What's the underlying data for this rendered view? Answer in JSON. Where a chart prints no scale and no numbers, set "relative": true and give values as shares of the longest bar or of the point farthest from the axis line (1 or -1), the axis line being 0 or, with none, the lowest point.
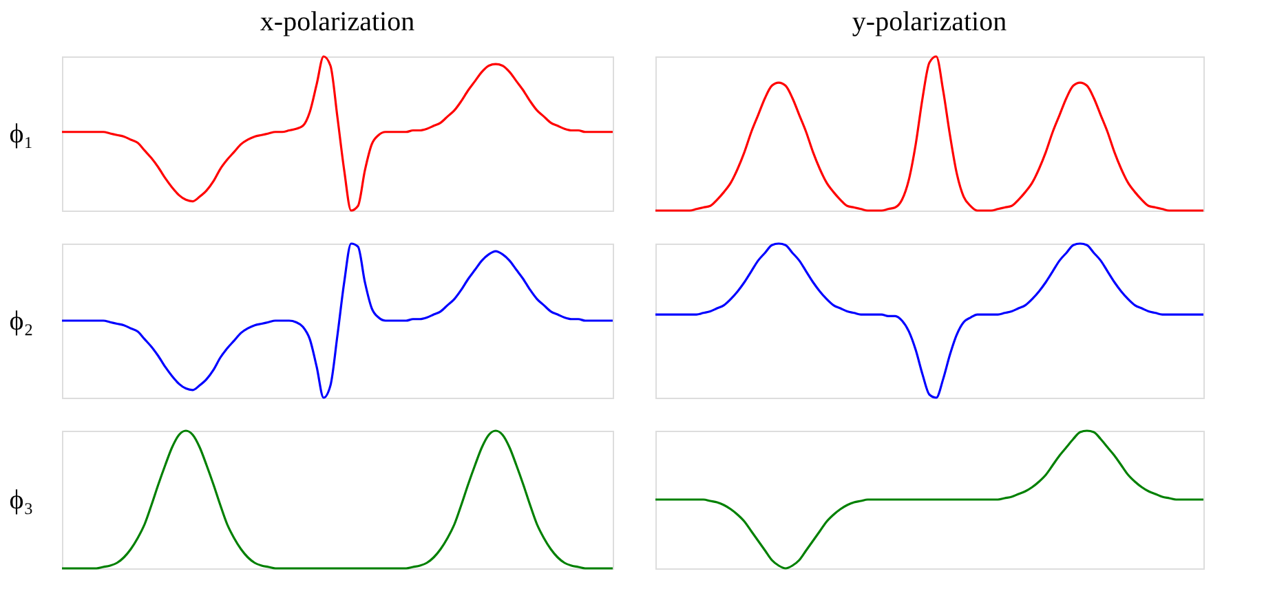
{
  "chart_data": [
    {
      "type": "line",
      "relative": true,
      "tick_labels": false,
      "title": "x-polarization",
      "ylabel": "ϕ₁",
      "categories": [
        null,
        null,
        null,
        null,
        null,
        null,
        null,
        null,
        null,
        null,
        null,
        null,
        null,
        null,
        null,
        null,
        null,
        null,
        null,
        null,
        null,
        null,
        null,
        null,
        null,
        null,
        null,
        null,
        null,
        null,
        null,
        null,
        null,
        null,
        null,
        null,
        null,
        null,
        null,
        null,
        null,
        null,
        null,
        null,
        null,
        null,
        null,
        null,
        null,
        null,
        null,
        null,
        null,
        null,
        null,
        null,
        null,
        null,
        null,
        null,
        null,
        null,
        null,
        null,
        null,
        null,
        null,
        null,
        null,
        null,
        null,
        null,
        null,
        null,
        null,
        null,
        null,
        null,
        null,
        null,
        null
      ],
      "series": [
        {
          "color": "#ff0000",
          "values": [
            0.51,
            0.51,
            0.51,
            0.51,
            0.51,
            0.51,
            0.51,
            0.5,
            0.49,
            0.48,
            0.46,
            0.44,
            0.39,
            0.34,
            0.28,
            0.21,
            0.15,
            0.1,
            0.07,
            0.06,
            0.09,
            0.13,
            0.19,
            0.27,
            0.33,
            0.38,
            0.43,
            0.46,
            0.48,
            0.49,
            0.5,
            0.51,
            0.51,
            0.52,
            0.53,
            0.55,
            0.64,
            0.82,
            1.0,
            0.94,
            0.61,
            0.26,
            0,
            0.03,
            0.26,
            0.43,
            0.49,
            0.51,
            0.51,
            0.51,
            0.51,
            0.52,
            0.52,
            0.53,
            0.55,
            0.57,
            0.61,
            0.65,
            0.71,
            0.78,
            0.84,
            0.9,
            0.94,
            0.95,
            0.94,
            0.9,
            0.84,
            0.78,
            0.71,
            0.65,
            0.61,
            0.57,
            0.55,
            0.53,
            0.52,
            0.52,
            0.51,
            0.51,
            0.51,
            0.51,
            0.51
          ]
        }
      ]
    },
    {
      "type": "line",
      "relative": true,
      "tick_labels": false,
      "title": "y-polarization",
      "categories": [
        null,
        null,
        null,
        null,
        null,
        null,
        null,
        null,
        null,
        null,
        null,
        null,
        null,
        null,
        null,
        null,
        null,
        null,
        null,
        null,
        null,
        null,
        null,
        null,
        null,
        null,
        null,
        null,
        null,
        null,
        null,
        null,
        null,
        null,
        null,
        null,
        null,
        null,
        null,
        null,
        null,
        null,
        null,
        null,
        null,
        null,
        null,
        null,
        null,
        null,
        null,
        null,
        null,
        null,
        null,
        null,
        null,
        null,
        null,
        null,
        null,
        null,
        null,
        null,
        null,
        null,
        null,
        null,
        null,
        null,
        null,
        null,
        null,
        null,
        null,
        null,
        null,
        null,
        null,
        null,
        null
      ],
      "series": [
        {
          "color": "#ff0000",
          "values": [
            0,
            0,
            0,
            0,
            0,
            0,
            0.01,
            0.02,
            0.03,
            0.07,
            0.12,
            0.18,
            0.27,
            0.38,
            0.51,
            0.62,
            0.73,
            0.81,
            0.83,
            0.81,
            0.73,
            0.62,
            0.51,
            0.38,
            0.27,
            0.18,
            0.12,
            0.07,
            0.03,
            0.02,
            0.01,
            0,
            0,
            0,
            0.01,
            0.02,
            0.07,
            0.2,
            0.43,
            0.73,
            0.96,
            1.0,
            0.78,
            0.49,
            0.24,
            0.09,
            0.03,
            0,
            0,
            0,
            0.01,
            0.02,
            0.03,
            0.07,
            0.12,
            0.18,
            0.27,
            0.38,
            0.51,
            0.62,
            0.73,
            0.81,
            0.83,
            0.81,
            0.73,
            0.62,
            0.51,
            0.38,
            0.27,
            0.18,
            0.12,
            0.07,
            0.03,
            0.02,
            0.01,
            0,
            0,
            0,
            0,
            0,
            0
          ]
        }
      ]
    },
    {
      "type": "line",
      "relative": true,
      "tick_labels": false,
      "ylabel": "ϕ₂",
      "categories": [
        null,
        null,
        null,
        null,
        null,
        null,
        null,
        null,
        null,
        null,
        null,
        null,
        null,
        null,
        null,
        null,
        null,
        null,
        null,
        null,
        null,
        null,
        null,
        null,
        null,
        null,
        null,
        null,
        null,
        null,
        null,
        null,
        null,
        null,
        null,
        null,
        null,
        null,
        null,
        null,
        null,
        null,
        null,
        null,
        null,
        null,
        null,
        null,
        null,
        null,
        null,
        null,
        null,
        null,
        null,
        null,
        null,
        null,
        null,
        null,
        null,
        null,
        null,
        null,
        null,
        null,
        null,
        null,
        null,
        null,
        null,
        null,
        null,
        null,
        null,
        null,
        null,
        null,
        null,
        null,
        null
      ],
      "series": [
        {
          "color": "#0000ff",
          "values": [
            0.5,
            0.5,
            0.5,
            0.5,
            0.5,
            0.5,
            0.5,
            0.49,
            0.48,
            0.47,
            0.45,
            0.43,
            0.38,
            0.33,
            0.27,
            0.2,
            0.14,
            0.09,
            0.06,
            0.05,
            0.08,
            0.12,
            0.18,
            0.26,
            0.32,
            0.37,
            0.42,
            0.45,
            0.47,
            0.48,
            0.49,
            0.5,
            0.5,
            0.5,
            0.49,
            0.46,
            0.38,
            0.2,
            0,
            0.08,
            0.4,
            0.75,
            1.0,
            0.98,
            0.75,
            0.58,
            0.52,
            0.5,
            0.5,
            0.5,
            0.5,
            0.51,
            0.51,
            0.52,
            0.54,
            0.56,
            0.6,
            0.64,
            0.7,
            0.77,
            0.83,
            0.89,
            0.93,
            0.95,
            0.93,
            0.89,
            0.83,
            0.77,
            0.7,
            0.64,
            0.6,
            0.56,
            0.54,
            0.52,
            0.51,
            0.51,
            0.5,
            0.5,
            0.5,
            0.5,
            0.5
          ]
        }
      ]
    },
    {
      "type": "line",
      "relative": true,
      "tick_labels": false,
      "categories": [
        null,
        null,
        null,
        null,
        null,
        null,
        null,
        null,
        null,
        null,
        null,
        null,
        null,
        null,
        null,
        null,
        null,
        null,
        null,
        null,
        null,
        null,
        null,
        null,
        null,
        null,
        null,
        null,
        null,
        null,
        null,
        null,
        null,
        null,
        null,
        null,
        null,
        null,
        null,
        null,
        null,
        null,
        null,
        null,
        null,
        null,
        null,
        null,
        null,
        null,
        null,
        null,
        null,
        null,
        null,
        null,
        null,
        null,
        null,
        null,
        null,
        null,
        null,
        null,
        null,
        null,
        null,
        null,
        null,
        null,
        null,
        null,
        null,
        null,
        null,
        null,
        null,
        null,
        null,
        null,
        null
      ],
      "series": [
        {
          "color": "#0000ff",
          "values": [
            0.54,
            0.54,
            0.54,
            0.54,
            0.54,
            0.54,
            0.54,
            0.55,
            0.56,
            0.58,
            0.6,
            0.64,
            0.69,
            0.75,
            0.82,
            0.89,
            0.94,
            0.99,
            1.0,
            0.99,
            0.94,
            0.89,
            0.82,
            0.75,
            0.69,
            0.64,
            0.6,
            0.58,
            0.56,
            0.55,
            0.54,
            0.54,
            0.54,
            0.54,
            0.53,
            0.53,
            0.5,
            0.43,
            0.31,
            0.15,
            0.02,
            0,
            0.12,
            0.28,
            0.41,
            0.49,
            0.52,
            0.54,
            0.54,
            0.54,
            0.54,
            0.55,
            0.56,
            0.58,
            0.6,
            0.64,
            0.69,
            0.75,
            0.82,
            0.89,
            0.94,
            0.99,
            1.0,
            0.99,
            0.94,
            0.89,
            0.82,
            0.75,
            0.69,
            0.64,
            0.6,
            0.58,
            0.56,
            0.55,
            0.54,
            0.54,
            0.54,
            0.54,
            0.54,
            0.54,
            0.54
          ]
        }
      ]
    },
    {
      "type": "line",
      "relative": true,
      "tick_labels": false,
      "ylabel": "ϕ₃",
      "categories": [
        null,
        null,
        null,
        null,
        null,
        null,
        null,
        null,
        null,
        null,
        null,
        null,
        null,
        null,
        null,
        null,
        null,
        null,
        null,
        null,
        null,
        null,
        null,
        null,
        null,
        null,
        null,
        null,
        null,
        null,
        null,
        null,
        null,
        null,
        null,
        null,
        null,
        null,
        null,
        null,
        null,
        null,
        null,
        null,
        null,
        null,
        null,
        null,
        null,
        null,
        null,
        null,
        null,
        null,
        null,
        null,
        null,
        null,
        null,
        null,
        null,
        null,
        null,
        null,
        null,
        null,
        null,
        null,
        null,
        null,
        null,
        null,
        null,
        null,
        null,
        null,
        null,
        null,
        null,
        null,
        null
      ],
      "series": [
        {
          "color": "#008000",
          "values": [
            0,
            0,
            0,
            0,
            0,
            0,
            0.01,
            0.02,
            0.04,
            0.08,
            0.14,
            0.22,
            0.32,
            0.46,
            0.61,
            0.75,
            0.88,
            0.97,
            1,
            0.97,
            0.88,
            0.75,
            0.61,
            0.46,
            0.32,
            0.22,
            0.14,
            0.08,
            0.04,
            0.02,
            0.01,
            0,
            0,
            0,
            0,
            0,
            0,
            0,
            0,
            0,
            0,
            0,
            0,
            0,
            0,
            0,
            0,
            0,
            0,
            0,
            0,
            0.01,
            0.02,
            0.04,
            0.08,
            0.14,
            0.22,
            0.32,
            0.46,
            0.61,
            0.75,
            0.88,
            0.97,
            1,
            0.97,
            0.88,
            0.75,
            0.61,
            0.46,
            0.32,
            0.22,
            0.14,
            0.08,
            0.04,
            0.02,
            0.01,
            0,
            0,
            0,
            0,
            0
          ]
        }
      ]
    },
    {
      "type": "line",
      "relative": true,
      "tick_labels": false,
      "categories": [
        null,
        null,
        null,
        null,
        null,
        null,
        null,
        null,
        null,
        null,
        null,
        null,
        null,
        null,
        null,
        null,
        null,
        null,
        null,
        null,
        null,
        null,
        null,
        null,
        null,
        null,
        null,
        null,
        null,
        null,
        null,
        null,
        null,
        null,
        null,
        null,
        null,
        null,
        null,
        null,
        null,
        null,
        null,
        null,
        null,
        null,
        null,
        null,
        null,
        null,
        null,
        null,
        null,
        null,
        null,
        null,
        null,
        null,
        null,
        null,
        null,
        null,
        null,
        null,
        null,
        null,
        null,
        null,
        null,
        null,
        null,
        null,
        null,
        null,
        null,
        null,
        null,
        null,
        null,
        null,
        null
      ],
      "series": [
        {
          "color": "#008000",
          "values": [
            0.5,
            0.5,
            0.5,
            0.5,
            0.5,
            0.5,
            0.5,
            0.5,
            0.49,
            0.48,
            0.46,
            0.43,
            0.39,
            0.34,
            0.27,
            0.2,
            0.13,
            0.06,
            0.02,
            0,
            0.02,
            0.06,
            0.13,
            0.2,
            0.27,
            0.34,
            0.39,
            0.43,
            0.46,
            0.48,
            0.49,
            0.5,
            0.5,
            0.5,
            0.5,
            0.5,
            0.5,
            0.5,
            0.5,
            0.5,
            0.5,
            0.5,
            0.5,
            0.5,
            0.5,
            0.5,
            0.5,
            0.5,
            0.5,
            0.5,
            0.5,
            0.51,
            0.52,
            0.54,
            0.56,
            0.59,
            0.63,
            0.68,
            0.75,
            0.82,
            0.88,
            0.94,
            0.99,
            1.0,
            0.99,
            0.94,
            0.88,
            0.82,
            0.75,
            0.68,
            0.63,
            0.59,
            0.56,
            0.54,
            0.52,
            0.51,
            0.5,
            0.5,
            0.5,
            0.5,
            0.5
          ]
        }
      ]
    }
  ]
}
